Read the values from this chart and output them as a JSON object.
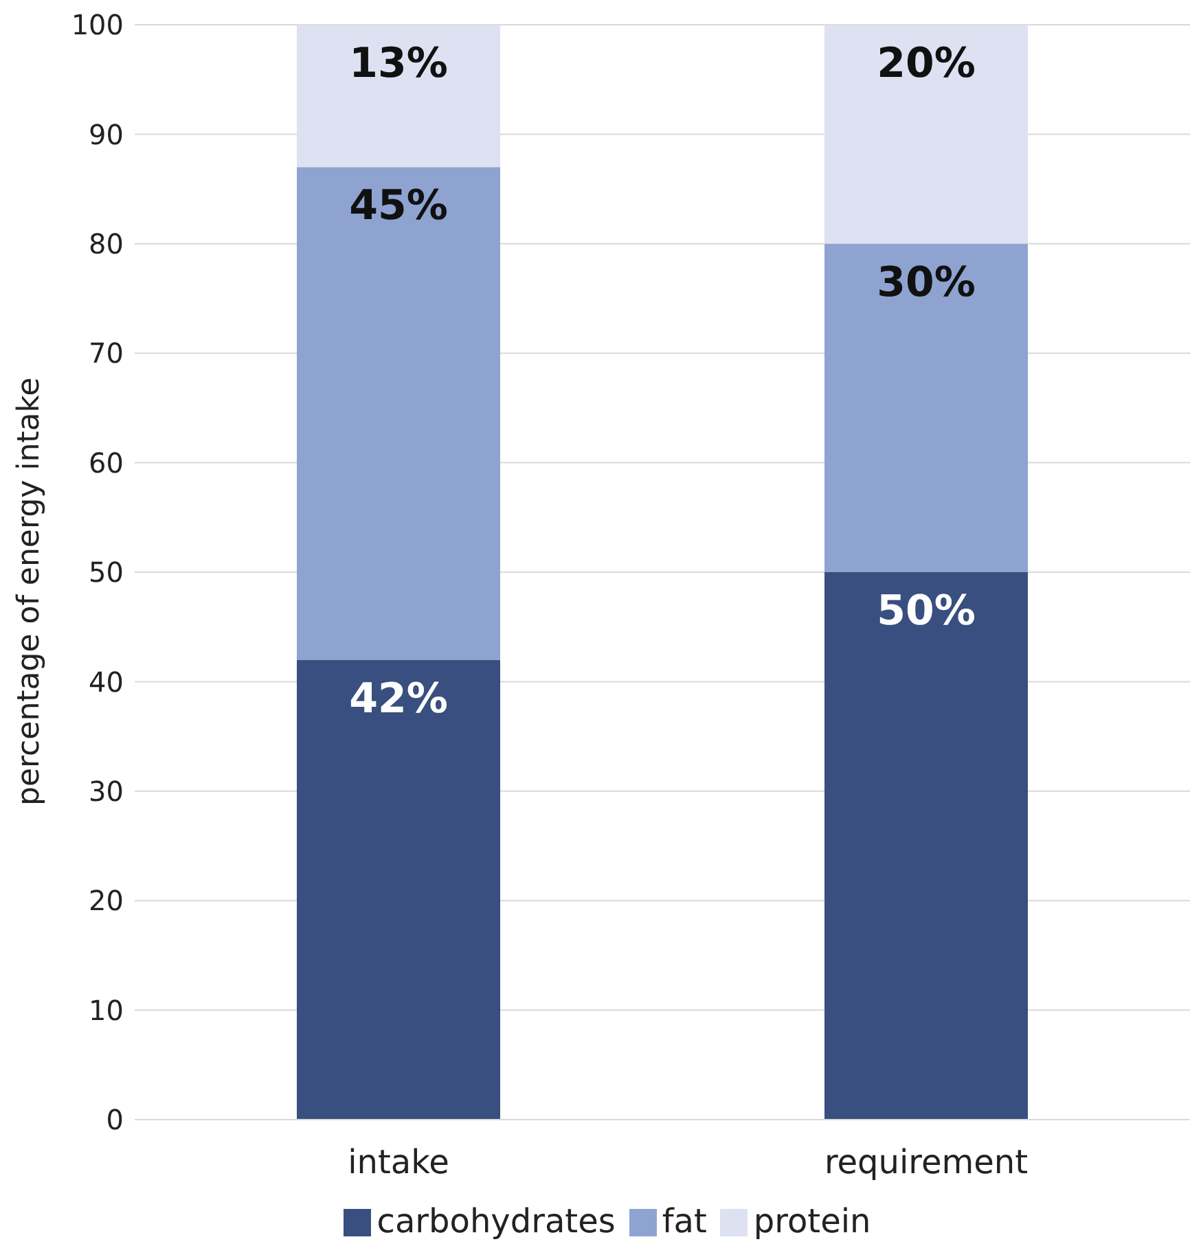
{
  "chart_data": {
    "type": "bar",
    "stacked": true,
    "categories": [
      "intake",
      "requirement"
    ],
    "series": [
      {
        "name": "carbohydrates",
        "color": "#384f7f",
        "values": [
          42,
          50
        ],
        "value_labels": [
          "42%",
          "50%"
        ]
      },
      {
        "name": "fat",
        "color": "#8fa3d1",
        "values": [
          45,
          30
        ],
        "value_labels": [
          "45%",
          "30%"
        ]
      },
      {
        "name": "protein",
        "color": "#dde1f1",
        "values": [
          13,
          20
        ],
        "value_labels": [
          "13%",
          "20%"
        ]
      }
    ],
    "ylabel": "percentage of energy intake",
    "ylim": [
      0,
      100
    ],
    "yticks": [
      0,
      10,
      20,
      30,
      40,
      50,
      60,
      70,
      80,
      90,
      100
    ],
    "grid": "y",
    "legend": "bottom"
  }
}
